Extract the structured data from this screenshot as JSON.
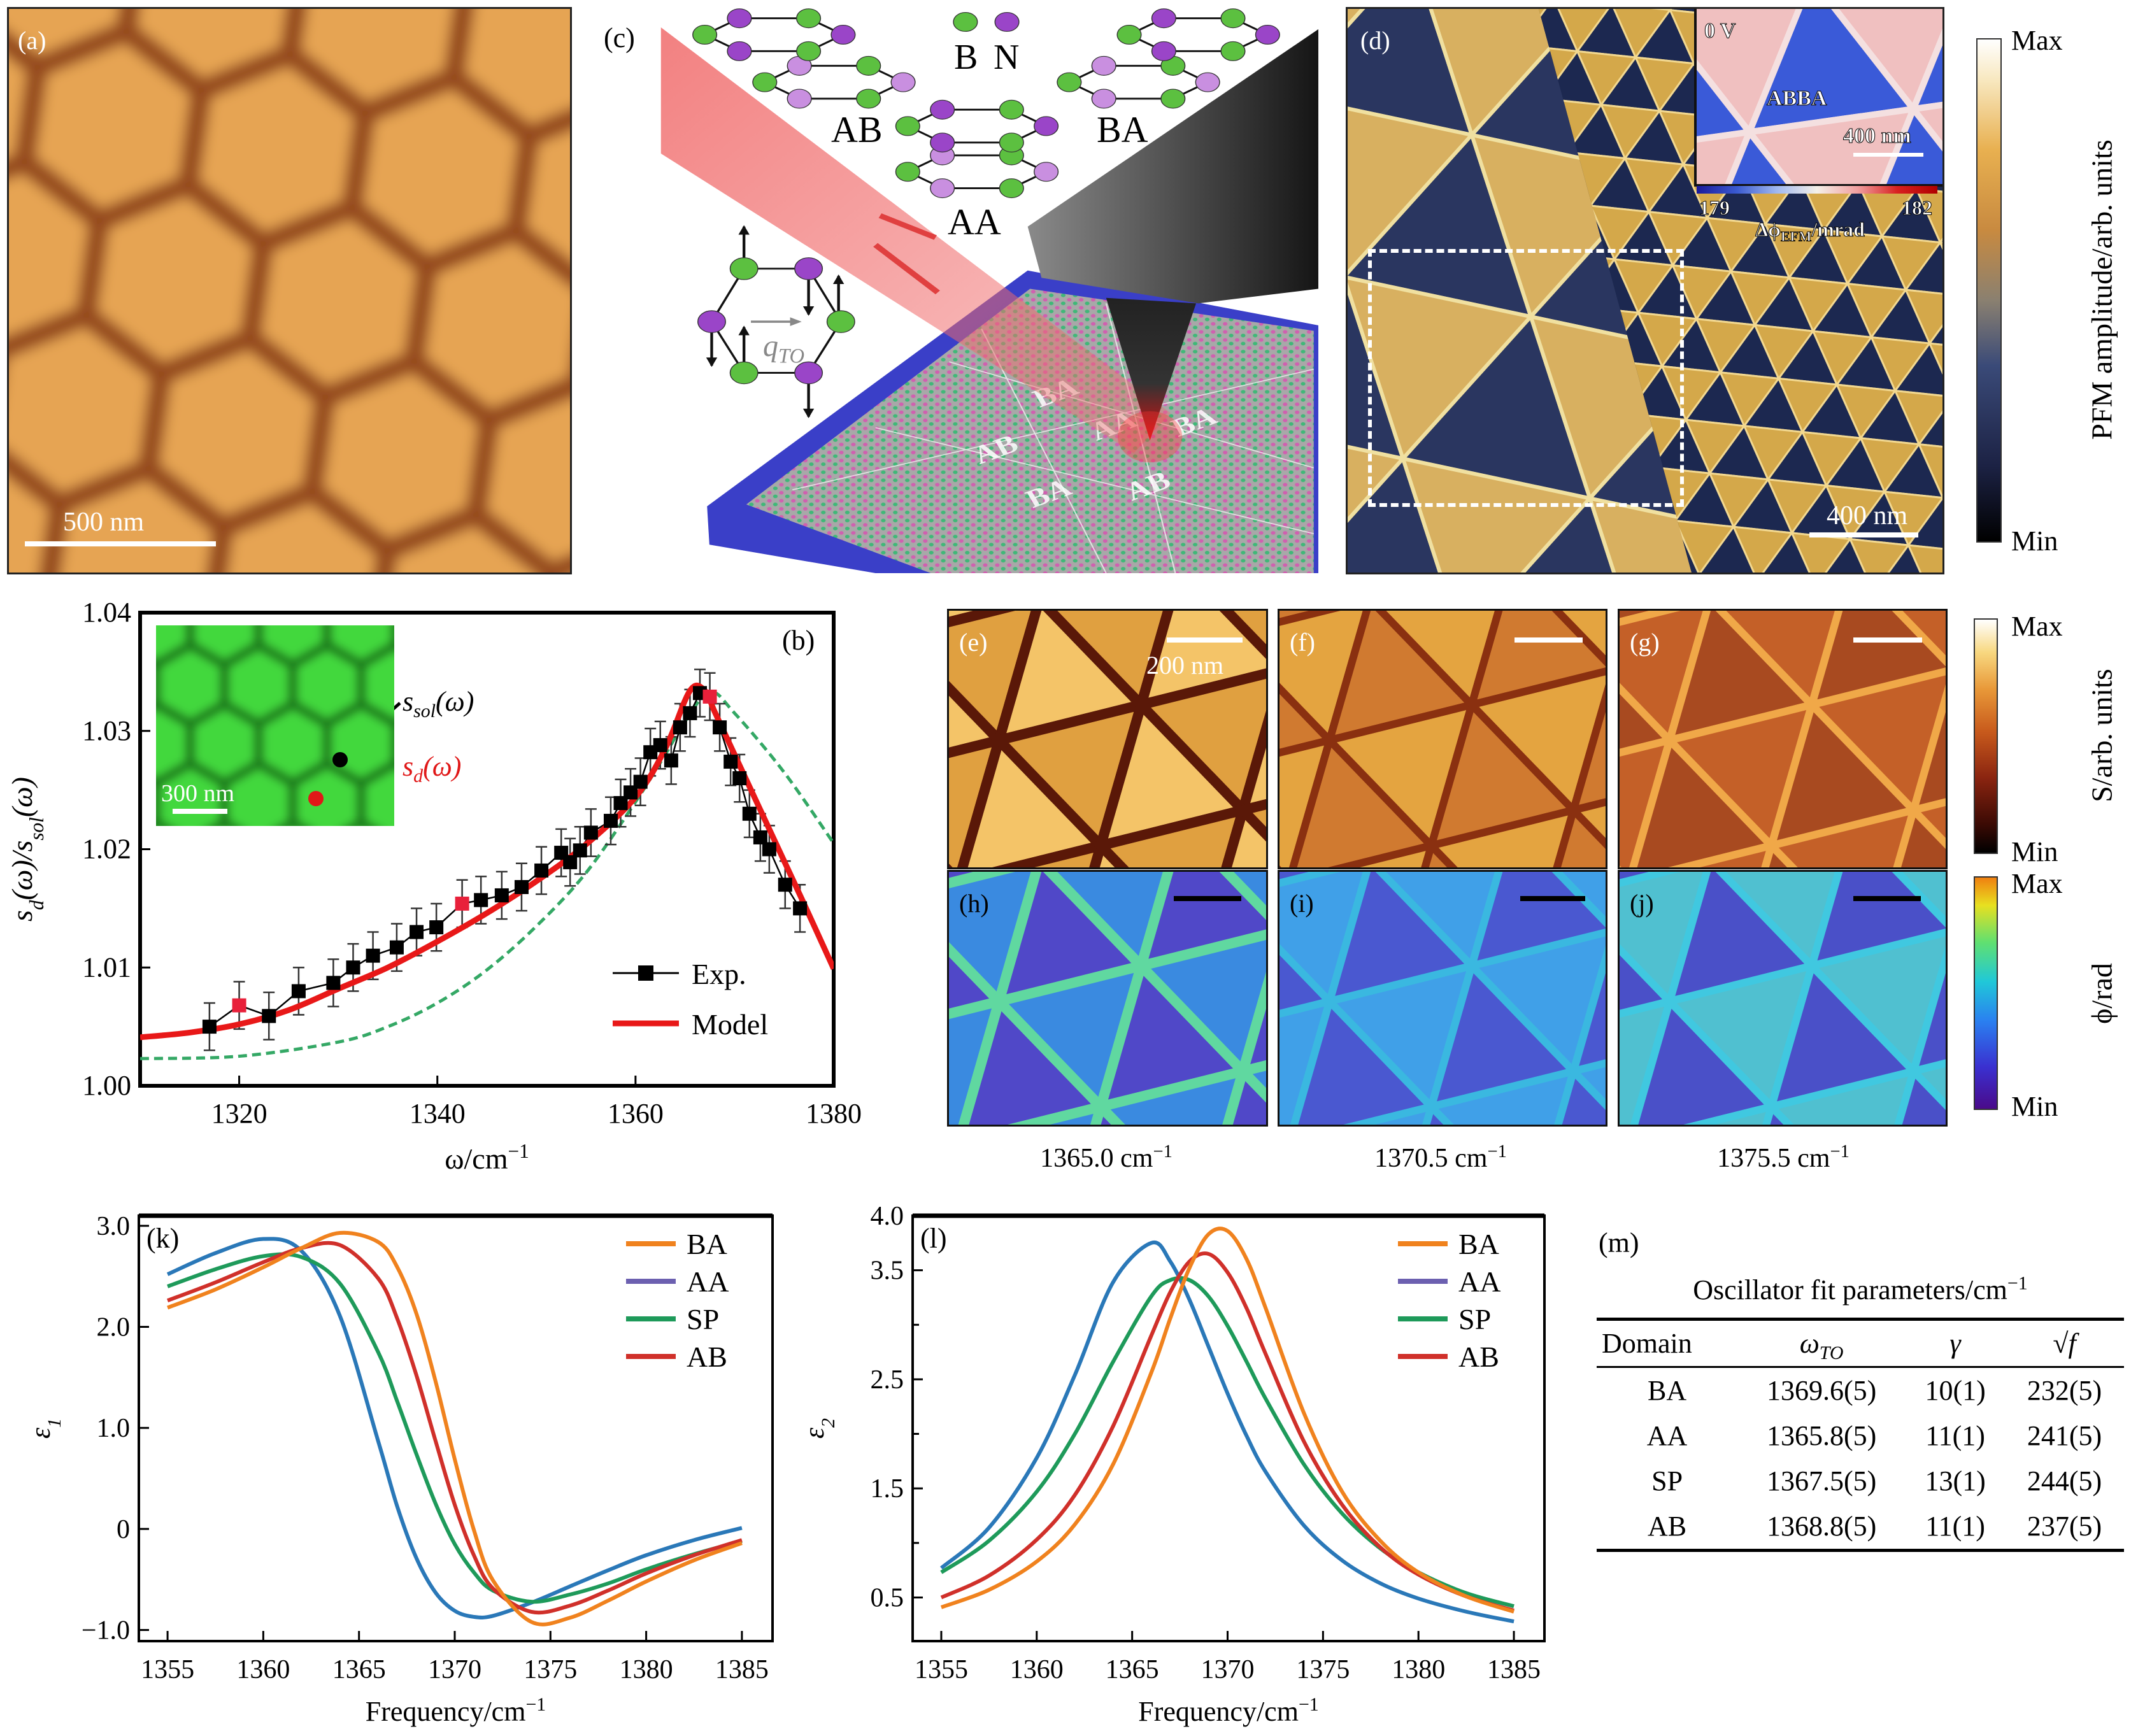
{
  "panel_a": {
    "label": "(a)",
    "scale_bar": "500 nm"
  },
  "panel_c": {
    "label": "(c)",
    "stacking_labels": {
      "ab": "AB",
      "aa": "AA",
      "ba": "BA"
    },
    "atom_legend": {
      "boron": "B",
      "nitrogen": "N"
    },
    "mode_label": "q_{TO}",
    "substrate_domains": [
      "BA",
      "AA",
      "BA",
      "AB",
      "BA",
      "AB"
    ],
    "colors": {
      "boron": "#5cc040",
      "nitrogen": "#9a45c8",
      "nitrogen_lower": "#c98fe0",
      "beam": "#f06a6a",
      "substrate_edge": "#3a3fc8"
    }
  },
  "panel_d": {
    "label": "(d)",
    "scale_bar": "400 nm",
    "inset": {
      "bias": "0 V",
      "domain": "ABBA",
      "scale_bar": "400 nm",
      "cbar_min": "179",
      "cbar_max": "182",
      "cbar_label": "Δϕ_{EFM}/mrad"
    },
    "colorbar": {
      "max": "Max",
      "min": "Min",
      "label": "PFM amplitude/arb. units"
    }
  },
  "panel_b_inset": {
    "scale_bar": "300 nm",
    "s_sol": "s_{sol}(ω)",
    "s_d": "s_{d}(ω)"
  },
  "panels_e_j": {
    "labels": {
      "e": "(e)",
      "f": "(f)",
      "g": "(g)",
      "h": "(h)",
      "i": "(i)",
      "j": "(j)"
    },
    "scale_bar": "200 nm",
    "frequencies": [
      "1365.0 cm^{−1}",
      "1370.5 cm^{−1}",
      "1375.5 cm^{−1}"
    ],
    "amplitude_colorbar": {
      "max": "Max",
      "min": "Min",
      "label": "S/arb. units"
    },
    "phase_colorbar": {
      "max": "Max",
      "min": "Min",
      "label": "ϕ/rad"
    }
  },
  "panel_m": {
    "label": "(m)",
    "title": "Oscillator fit parameters/cm^{−1}",
    "columns": [
      "Domain",
      "ω_{TO}",
      "γ",
      "√f"
    ],
    "rows": [
      [
        "BA",
        "1369.6(5)",
        "10(1)",
        "232(5)"
      ],
      [
        "AA",
        "1365.8(5)",
        "11(1)",
        "241(5)"
      ],
      [
        "SP",
        "1367.5(5)",
        "13(1)",
        "244(5)"
      ],
      [
        "AB",
        "1368.8(5)",
        "11(1)",
        "237(5)"
      ]
    ]
  },
  "chart_data": [
    {
      "panel": "(b)",
      "type": "line",
      "xlabel": "ω/cm^{−1}",
      "ylabel": "s_{d}(ω)/s_{sol}(ω)",
      "xlim": [
        1310,
        1380
      ],
      "ylim": [
        1.0,
        1.04
      ],
      "xticks": [
        1320,
        1340,
        1360,
        1380
      ],
      "xtick_labels": [
        "1320",
        "1340",
        "1360",
        "1380"
      ],
      "yticks": [
        1.0,
        1.01,
        1.02,
        1.03,
        1.04
      ],
      "ytick_labels": [
        "1.00",
        "1.01",
        "1.02",
        "1.03",
        "1.04"
      ],
      "grid": false,
      "legend": "bottom-right",
      "series": [
        {
          "name": "Exp.",
          "kind": "markers-line",
          "color": "#000000",
          "yerr": 0.002,
          "highlight_x": [
            1320,
            1342.5,
            1367.5
          ],
          "highlight_color": "#e8203a",
          "x": [
            1317,
            1320,
            1323,
            1326,
            1329.5,
            1331.5,
            1333.5,
            1335.9,
            1337.9,
            1339.9,
            1342.5,
            1344.4,
            1346.5,
            1348.5,
            1350.5,
            1352.5,
            1353.4,
            1354.4,
            1355.5,
            1357.5,
            1358.5,
            1359.5,
            1360.5,
            1361.5,
            1362.5,
            1363.6,
            1364.5,
            1365.5,
            1366.5,
            1367.5,
            1368.5,
            1369.6,
            1370.5,
            1371.5,
            1372.6,
            1373.5,
            1375.1,
            1376.6
          ],
          "y": [
            1.005,
            1.0068,
            1.0059,
            1.008,
            1.0087,
            1.01,
            1.011,
            1.0117,
            1.013,
            1.0134,
            1.0154,
            1.0157,
            1.0161,
            1.0168,
            1.0182,
            1.0197,
            1.0189,
            1.0199,
            1.0214,
            1.0224,
            1.0239,
            1.0248,
            1.0257,
            1.0282,
            1.0288,
            1.0275,
            1.0303,
            1.0315,
            1.0332,
            1.0329,
            1.0303,
            1.0274,
            1.026,
            1.023,
            1.021,
            1.02,
            1.017,
            1.015
          ]
        },
        {
          "name": "Model",
          "kind": "line",
          "color": "#e81818",
          "x": [
            1310,
            1315,
            1320,
            1325,
            1330,
            1335,
            1340,
            1345,
            1350,
            1355,
            1360,
            1363,
            1365.5,
            1367,
            1368,
            1370,
            1372.5,
            1375,
            1377,
            1380
          ],
          "y": [
            1.0041,
            1.0045,
            1.0052,
            1.0064,
            1.0082,
            1.01,
            1.0122,
            1.0146,
            1.0173,
            1.0204,
            1.0244,
            1.0285,
            1.0334,
            1.0334,
            1.0316,
            1.028,
            1.0235,
            1.019,
            1.0154,
            1.0099
          ]
        },
        {
          "kind": "dashed-line",
          "color": "#34a865",
          "x": [
            1310,
            1320,
            1330,
            1335,
            1340,
            1345,
            1350,
            1355,
            1360,
            1363,
            1365,
            1367.5,
            1370,
            1375,
            1380
          ],
          "y": [
            1.0023,
            1.0025,
            1.0037,
            1.005,
            1.007,
            1.0098,
            1.0135,
            1.018,
            1.024,
            1.028,
            1.0308,
            1.0333,
            1.0315,
            1.0265,
            1.0205
          ]
        }
      ]
    },
    {
      "panel": "(k)",
      "type": "line",
      "xlabel": "Frequency/cm^{−1}",
      "ylabel": "ε_{1}",
      "xlim": [
        1353.5,
        1386.6
      ],
      "ylim": [
        -1.11,
        3.1
      ],
      "xticks": [
        1355,
        1360,
        1365,
        1370,
        1375,
        1380,
        1385
      ],
      "xtick_labels": [
        "1355",
        "1360",
        "1365",
        "1370",
        "1375",
        "1380",
        "1385"
      ],
      "yticks": [
        -1,
        0,
        1,
        2,
        3
      ],
      "ytick_labels": [
        "−1.0",
        "0",
        "1.0",
        "2.0",
        "3.0"
      ],
      "grid": false,
      "legend": "top-right",
      "x": [
        1355,
        1357.5,
        1360,
        1362,
        1364,
        1366,
        1367,
        1368,
        1369,
        1370,
        1371,
        1372,
        1374,
        1376,
        1378,
        1380,
        1382.5,
        1385
      ],
      "series": [
        {
          "name": "BA",
          "color": "#f0821e",
          "legend_color": "#f0821e",
          "y": [
            2.19,
            2.37,
            2.59,
            2.78,
            2.93,
            2.84,
            2.59,
            2.13,
            1.46,
            0.69,
            -0.01,
            -0.51,
            -0.92,
            -0.88,
            -0.71,
            -0.52,
            -0.31,
            -0.14
          ]
        },
        {
          "name": "AA",
          "color": "#2a78b8",
          "legend_color": "#6c60b0",
          "y": [
            2.52,
            2.73,
            2.87,
            2.75,
            2.11,
            0.87,
            0.22,
            -0.29,
            -0.63,
            -0.81,
            -0.87,
            -0.86,
            -0.73,
            -0.57,
            -0.41,
            -0.26,
            -0.11,
            0.01
          ]
        },
        {
          "name": "SP",
          "color": "#1e9a5a",
          "legend_color": "#1e9a5a",
          "y": [
            2.4,
            2.57,
            2.7,
            2.69,
            2.43,
            1.75,
            1.26,
            0.74,
            0.25,
            -0.15,
            -0.43,
            -0.61,
            -0.72,
            -0.65,
            -0.54,
            -0.4,
            -0.25,
            -0.12
          ]
        },
        {
          "name": "AB",
          "color": "#d0302a",
          "legend_color": "#d0302a",
          "y": [
            2.26,
            2.44,
            2.64,
            2.78,
            2.81,
            2.48,
            2.08,
            1.52,
            0.87,
            0.24,
            -0.26,
            -0.59,
            -0.82,
            -0.76,
            -0.61,
            -0.44,
            -0.26,
            -0.11
          ]
        }
      ]
    },
    {
      "panel": "(l)",
      "type": "line",
      "xlabel": "Frequency/cm^{−1}",
      "ylabel": "ε_{2}",
      "xlim": [
        1353.5,
        1386.6
      ],
      "ylim": [
        0.1,
        4.0
      ],
      "xticks": [
        1355,
        1360,
        1365,
        1370,
        1375,
        1380,
        1385
      ],
      "xtick_labels": [
        "1355",
        "1360",
        "1365",
        "1370",
        "1375",
        "1380",
        "1385"
      ],
      "yticks": [
        0.5,
        1.5,
        2.5,
        3.5,
        4.0
      ],
      "ytick_labels": [
        "0.5",
        "1.5",
        "2.5",
        "3.5",
        "4.0"
      ],
      "yticks_minor": [
        1.0,
        2.0,
        3.0
      ],
      "grid": false,
      "legend": "top-right",
      "x": [
        1355,
        1357.5,
        1360,
        1362,
        1364,
        1366,
        1367,
        1368,
        1369,
        1370,
        1371,
        1372,
        1374,
        1376,
        1378,
        1380,
        1382.5,
        1385
      ],
      "series": [
        {
          "name": "BA",
          "color": "#f0821e",
          "legend_color": "#f0821e",
          "y": [
            0.41,
            0.57,
            0.83,
            1.17,
            1.72,
            2.56,
            3.06,
            3.52,
            3.83,
            3.86,
            3.6,
            3.15,
            2.19,
            1.47,
            1.02,
            0.73,
            0.51,
            0.37
          ]
        },
        {
          "name": "AA",
          "color": "#2a78b8",
          "legend_color": "#6c60b0",
          "y": [
            0.77,
            1.14,
            1.78,
            2.54,
            3.39,
            3.75,
            3.58,
            3.23,
            2.8,
            2.37,
            1.98,
            1.65,
            1.16,
            0.84,
            0.63,
            0.49,
            0.37,
            0.28
          ]
        },
        {
          "name": "SP",
          "color": "#1e9a5a",
          "legend_color": "#1e9a5a",
          "y": [
            0.73,
            1.02,
            1.47,
            2.0,
            2.66,
            3.26,
            3.41,
            3.41,
            3.26,
            2.99,
            2.66,
            2.32,
            1.72,
            1.27,
            0.95,
            0.73,
            0.54,
            0.42
          ]
        },
        {
          "name": "AB",
          "color": "#d0302a",
          "legend_color": "#d0302a",
          "y": [
            0.5,
            0.7,
            1.03,
            1.44,
            2.07,
            2.9,
            3.3,
            3.58,
            3.65,
            3.48,
            3.15,
            2.73,
            1.93,
            1.35,
            0.96,
            0.71,
            0.51,
            0.38
          ]
        }
      ]
    }
  ]
}
